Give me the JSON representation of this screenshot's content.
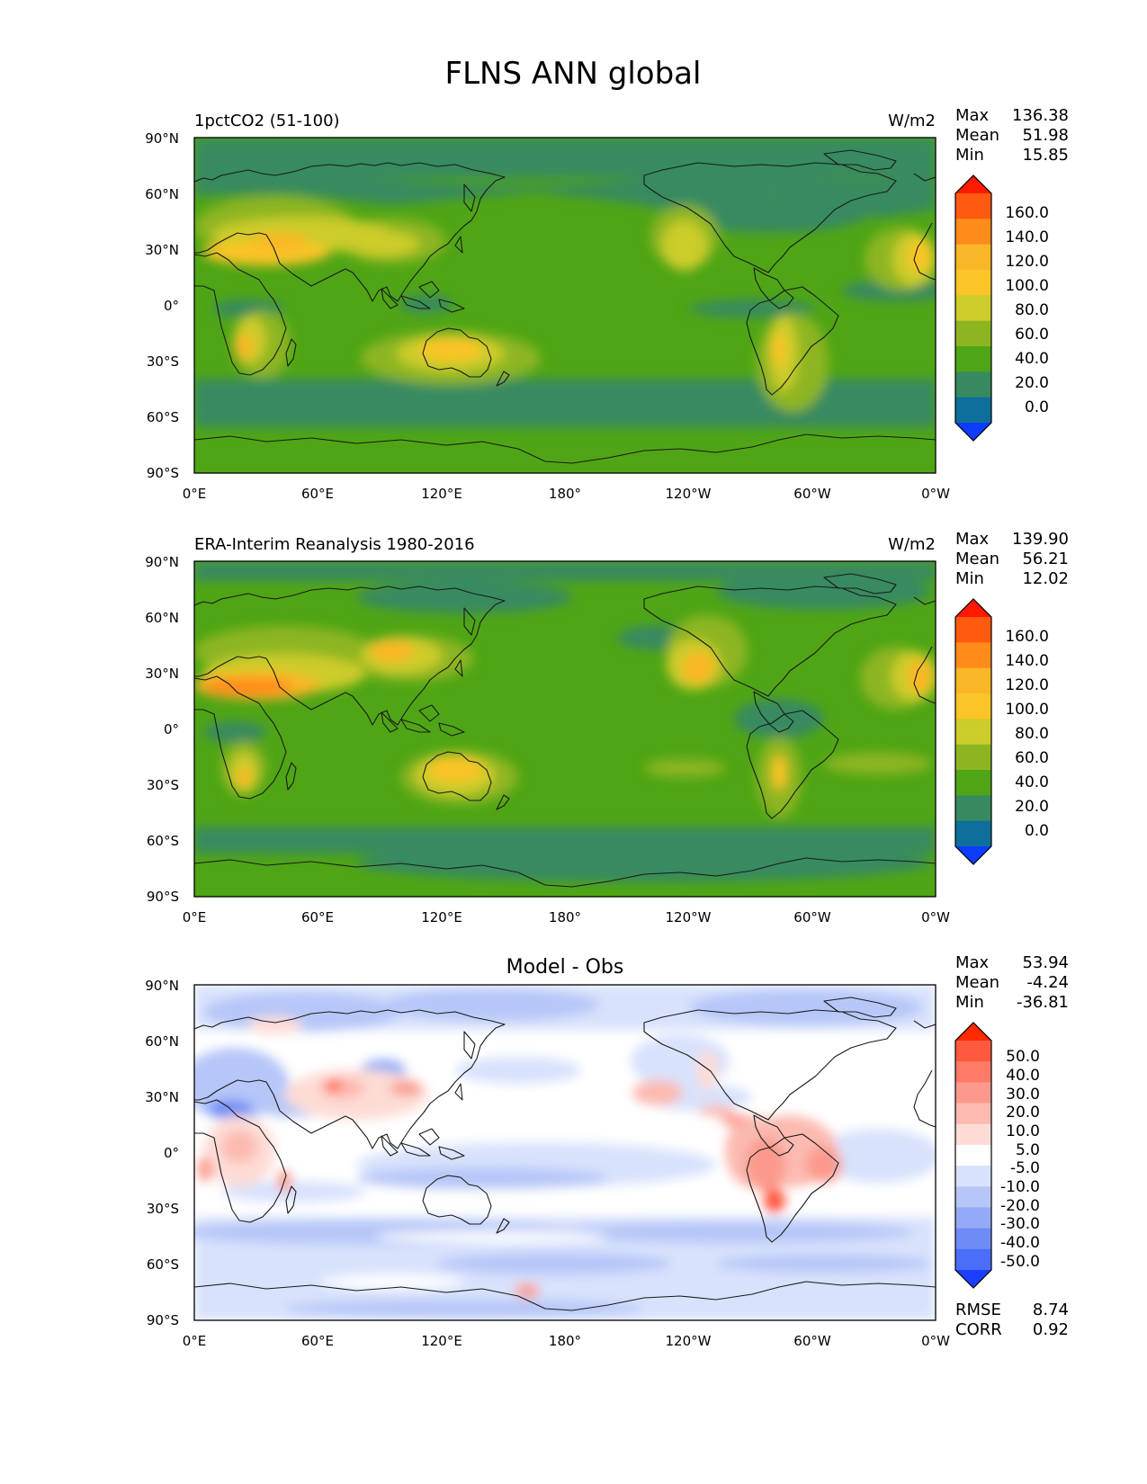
{
  "figure": {
    "title": "FLNS ANN global"
  },
  "axes": {
    "lat_labels": [
      "90°N",
      "60°N",
      "30°N",
      "0°",
      "30°S",
      "60°S",
      "90°S"
    ],
    "lon_labels": [
      "0°E",
      "60°E",
      "120°E",
      "180°",
      "120°W",
      "60°W",
      "0°W"
    ]
  },
  "panels": [
    {
      "id": "test",
      "left_title": "1pctCO2 (51-100)",
      "center_title": "",
      "units": "W/m2",
      "stats": [
        {
          "label": "Max",
          "value": "136.38"
        },
        {
          "label": "Mean",
          "value": "51.98"
        },
        {
          "label": "Min",
          "value": "15.85"
        }
      ],
      "colorbar": {
        "labels": [
          "160.0",
          "140.0",
          "120.0",
          "100.0",
          "80.0",
          "60.0",
          "40.0",
          "20.0",
          "0.0"
        ],
        "colors": [
          "#ff1a00",
          "#ff5a10",
          "#ff8c1a",
          "#f9b728",
          "#fbc428",
          "#cccc2a",
          "#8db522",
          "#4fa515",
          "#378a60",
          "#0c6f9c",
          "#0c3dff"
        ]
      },
      "footer_stats": []
    },
    {
      "id": "reference",
      "left_title": "ERA-Interim Reanalysis 1980-2016",
      "center_title": "",
      "units": "W/m2",
      "stats": [
        {
          "label": "Max",
          "value": "139.90"
        },
        {
          "label": "Mean",
          "value": "56.21"
        },
        {
          "label": "Min",
          "value": "12.02"
        }
      ],
      "colorbar": {
        "labels": [
          "160.0",
          "140.0",
          "120.0",
          "100.0",
          "80.0",
          "60.0",
          "40.0",
          "20.0",
          "0.0"
        ],
        "colors": [
          "#ff1a00",
          "#ff5a10",
          "#ff8c1a",
          "#f9b728",
          "#fbc428",
          "#cccc2a",
          "#8db522",
          "#4fa515",
          "#378a60",
          "#0c6f9c",
          "#0c3dff"
        ]
      },
      "footer_stats": []
    },
    {
      "id": "diff",
      "left_title": "",
      "center_title": "Model - Obs",
      "units": "",
      "stats": [
        {
          "label": "Max",
          "value": "53.94"
        },
        {
          "label": "Mean",
          "value": "-4.24"
        },
        {
          "label": "Min",
          "value": "-36.81"
        }
      ],
      "colorbar": {
        "labels": [
          "50.0",
          "40.0",
          "30.0",
          "20.0",
          "10.0",
          "5.0",
          "-5.0",
          "-10.0",
          "-20.0",
          "-30.0",
          "-40.0",
          "-50.0"
        ],
        "colors": [
          "#ff2a00",
          "#ff5a40",
          "#ff7a66",
          "#fb9a8c",
          "#fcbab0",
          "#fddcd6",
          "#ffffff",
          "#d8e2fc",
          "#b6c6f8",
          "#94aaf6",
          "#6e8cf6",
          "#4a6ef9",
          "#1a3fff"
        ]
      },
      "footer_stats": [
        {
          "label": "RMSE",
          "value": "8.74"
        },
        {
          "label": "CORR",
          "value": "0.92"
        }
      ]
    }
  ]
}
